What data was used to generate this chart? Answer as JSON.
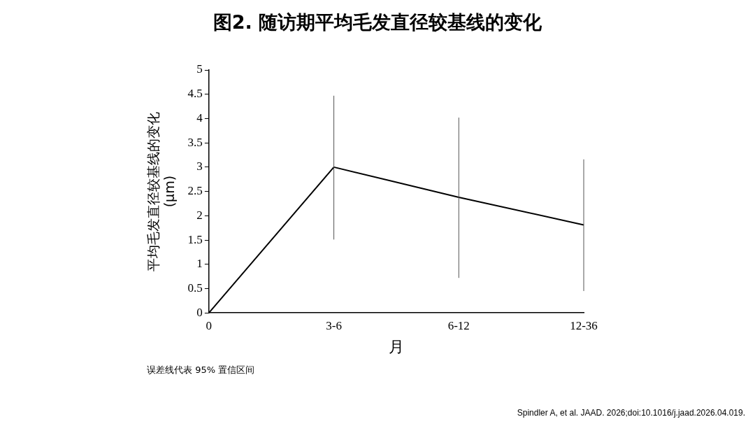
{
  "chart_data": {
    "type": "line",
    "title": "图2. 随访期平均毛发直径较基线的变化",
    "xlabel": "月",
    "ylabel": "平均毛发直径较基线的变化\n(μm)",
    "categories": [
      "0",
      "3-6",
      "6-12",
      "12-36"
    ],
    "series": [
      {
        "color": "#000000",
        "values": [
          0,
          3,
          2.38,
          1.81
        ],
        "errors": [
          null,
          [
            1.51,
            4.47
          ],
          [
            0.72,
            4.02
          ],
          [
            0.45,
            3.16
          ]
        ]
      }
    ],
    "ylim": [
      0,
      5
    ],
    "yticks": [
      0,
      0.5,
      1,
      1.5,
      2,
      2.5,
      3,
      3.5,
      4,
      4.5,
      5
    ],
    "grid": false,
    "legend": false,
    "marker": "none",
    "line_style": "solid",
    "annotations": [
      "误差线代表 95% 置信区间",
      "Spindler A, et al. JAAD. 2026;doi:10.1016/j.jaad.2026.04.019."
    ]
  }
}
